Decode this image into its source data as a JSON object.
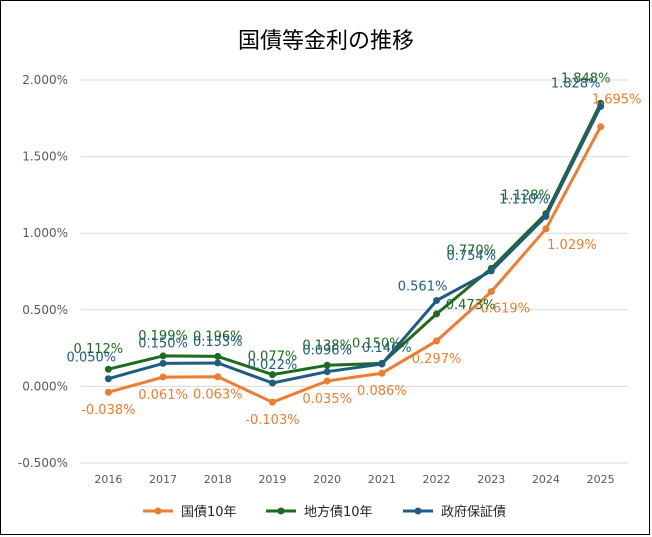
{
  "chart_data": {
    "type": "line",
    "title": "国債等金利の推移",
    "x": [
      "2016",
      "2017",
      "2018",
      "2019",
      "2020",
      "2021",
      "2022",
      "2023",
      "2024",
      "2025"
    ],
    "y_ticks": [
      "2.000%",
      "1.500%",
      "1.000%",
      "0.500%",
      "0.000%",
      "-0.500%"
    ],
    "ylim": [
      -0.5,
      2.0
    ],
    "grid": "horizontal",
    "legend_position": "bottom",
    "series": [
      {
        "name": "国債10年",
        "color": "#ED7D31",
        "values": [
          -0.038,
          0.061,
          0.063,
          -0.103,
          0.035,
          0.086,
          0.297,
          0.619,
          1.029,
          1.695
        ],
        "labels": [
          "-0.038%",
          "0.061%",
          "0.063%",
          "-0.103%",
          "0.035%",
          "0.086%",
          "0.297%",
          "0.619%",
          "1.029%",
          "1.695%"
        ]
      },
      {
        "name": "地方債10年",
        "color": "#1E6B1E",
        "values": [
          0.112,
          0.199,
          0.196,
          0.077,
          0.138,
          0.15,
          0.473,
          0.77,
          1.128,
          1.848
        ],
        "labels": [
          "0.112%",
          "0.199%",
          "0.196%",
          "0.077%",
          "0.138%",
          "0.150%",
          "0.473%",
          "0.770%",
          "1.128%",
          "1.848%"
        ]
      },
      {
        "name": "政府保証債",
        "color": "#1F5C7F",
        "values": [
          0.05,
          0.15,
          0.153,
          0.022,
          0.096,
          0.146,
          0.561,
          0.754,
          1.11,
          1.828
        ],
        "labels": [
          "0.050%",
          "0.150%",
          "0.153%",
          "0.022%",
          "0.096%",
          "0.146%",
          "0.561%",
          "0.754%",
          "1.110%",
          "1.828%"
        ]
      }
    ]
  }
}
